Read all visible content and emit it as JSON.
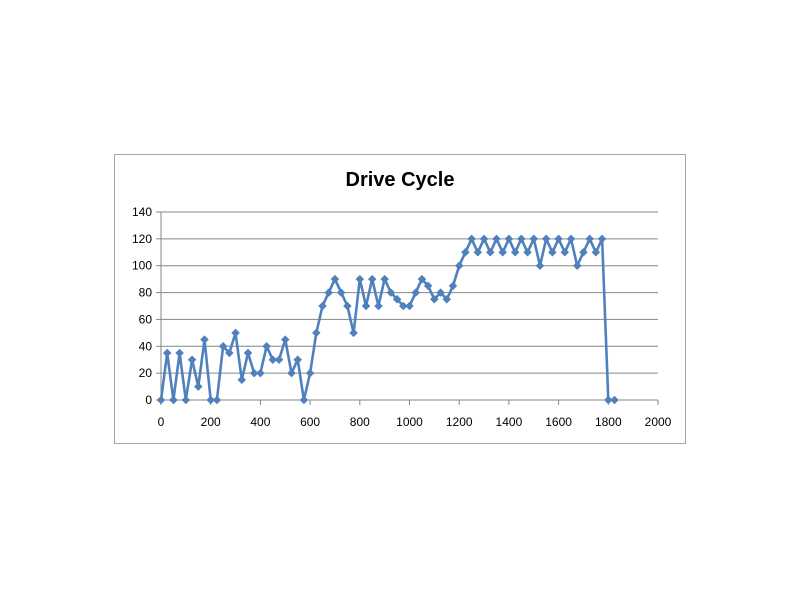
{
  "chart_data": {
    "type": "line",
    "title": "Drive Cycle",
    "xlabel": "",
    "ylabel": "",
    "xlim": [
      0,
      2000
    ],
    "ylim": [
      0,
      140
    ],
    "x_ticks": [
      0,
      200,
      400,
      600,
      800,
      1000,
      1200,
      1400,
      1600,
      1800,
      2000
    ],
    "y_ticks": [
      0,
      20,
      40,
      60,
      80,
      100,
      120,
      140
    ],
    "grid": "horizontal",
    "legend": "none",
    "marker": "diamond",
    "series": [
      {
        "color": "#4f81bd",
        "x": [
          0,
          25,
          50,
          75,
          100,
          125,
          150,
          175,
          200,
          225,
          250,
          275,
          300,
          325,
          350,
          375,
          400,
          425,
          450,
          475,
          500,
          525,
          550,
          575,
          600,
          625,
          650,
          675,
          700,
          725,
          750,
          775,
          800,
          825,
          850,
          875,
          900,
          925,
          950,
          975,
          1000,
          1025,
          1050,
          1075,
          1100,
          1125,
          1150,
          1175,
          1200,
          1225,
          1250,
          1275,
          1300,
          1325,
          1350,
          1375,
          1400,
          1425,
          1450,
          1475,
          1500,
          1525,
          1550,
          1575,
          1600,
          1625,
          1650,
          1675,
          1700,
          1725,
          1750,
          1775,
          1800,
          1825
        ],
        "y": [
          0,
          35,
          0,
          35,
          0,
          30,
          10,
          45,
          0,
          0,
          40,
          35,
          50,
          15,
          35,
          20,
          20,
          40,
          30,
          30,
          45,
          20,
          30,
          0,
          20,
          50,
          70,
          80,
          90,
          80,
          70,
          50,
          90,
          70,
          90,
          70,
          90,
          80,
          75,
          70,
          70,
          80,
          90,
          85,
          75,
          80,
          75,
          85,
          100,
          110,
          120,
          110,
          120,
          110,
          120,
          110,
          120,
          110,
          120,
          110,
          120,
          100,
          120,
          110,
          120,
          110,
          120,
          100,
          110,
          120,
          110,
          120,
          0,
          0
        ]
      }
    ]
  }
}
